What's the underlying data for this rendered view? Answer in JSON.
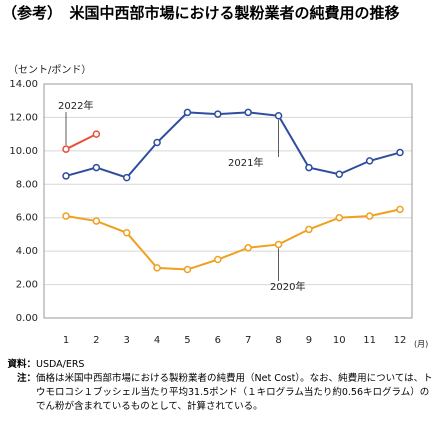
{
  "chart_data": {
    "type": "line",
    "title": "（参考）　米国中西部市場における製粉業者の純費用の推移",
    "y_label": "（セント/ポンド）",
    "x_unit": "(月)",
    "categories": [
      "1",
      "2",
      "3",
      "4",
      "5",
      "6",
      "7",
      "8",
      "9",
      "10",
      "11",
      "12"
    ],
    "series": [
      {
        "name": "2021年",
        "color": "#2e4d9e",
        "values": [
          8.5,
          9.0,
          8.4,
          10.5,
          12.3,
          12.2,
          12.3,
          12.1,
          9.0,
          8.6,
          9.4,
          9.9
        ]
      },
      {
        "name": "2020年",
        "color": "#f0a020",
        "values": [
          6.1,
          5.8,
          5.1,
          3.0,
          2.9,
          3.5,
          4.2,
          4.4,
          5.3,
          6.0,
          6.1,
          6.5
        ]
      },
      {
        "name": "2022年",
        "color": "#e8503a",
        "values": [
          10.1,
          11.0,
          null,
          null,
          null,
          null,
          null,
          null,
          null,
          null,
          null,
          null
        ]
      }
    ],
    "ylim": [
      0,
      14
    ],
    "yticks": [
      {
        "value": 0,
        "label": "0.00"
      },
      {
        "value": 2,
        "label": "2.00"
      },
      {
        "value": 4,
        "label": "4.00"
      },
      {
        "value": 6,
        "label": "6.00"
      },
      {
        "value": 8,
        "label": "8.00"
      },
      {
        "value": 10,
        "label": "10.00"
      },
      {
        "value": 12,
        "label": "12.00"
      },
      {
        "value": 14,
        "label": "14.00"
      }
    ],
    "grid": true
  },
  "notes": {
    "source_label": "資料：",
    "source": "USDA/ERS",
    "note_label": "注：",
    "note": "価格は米国中西部市場における製粉業者の純費用（Net Cost）。なお、純費用については、トウモロコシ１ブッシェル当たり平均31.5ポンド（１キログラム当たり約0.56キログラム）のでん粉が含まれているものとして、計算されている。"
  }
}
